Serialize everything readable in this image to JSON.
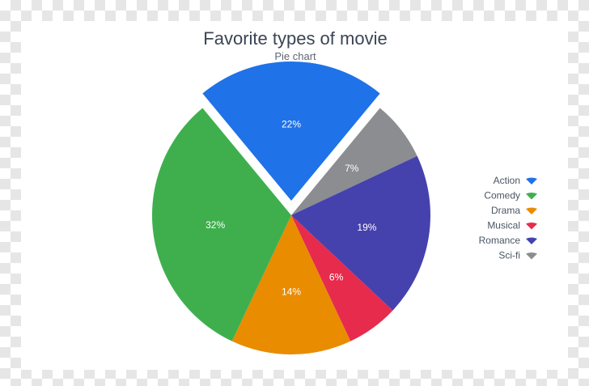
{
  "chart_data": {
    "type": "pie",
    "title": "Favorite types of movie",
    "subtitle": "Pie chart",
    "exploded": "Action",
    "legend_position": "right",
    "slices": [
      {
        "label": "Action",
        "value": 22,
        "display": "22%",
        "color": "#1f72e8"
      },
      {
        "label": "Sci-fi",
        "value": 7,
        "display": "7%",
        "color": "#8b8d91"
      },
      {
        "label": "Romance",
        "value": 19,
        "display": "19%",
        "color": "#4542ad"
      },
      {
        "label": "Musical",
        "value": 6,
        "display": "6%",
        "color": "#e62b4d"
      },
      {
        "label": "Drama",
        "value": 14,
        "display": "14%",
        "color": "#e98c00"
      },
      {
        "label": "Comedy",
        "value": 32,
        "display": "32%",
        "color": "#3faf4e"
      }
    ],
    "legend": [
      "Action",
      "Comedy",
      "Drama",
      "Musical",
      "Romance",
      "Sci-fi"
    ]
  }
}
